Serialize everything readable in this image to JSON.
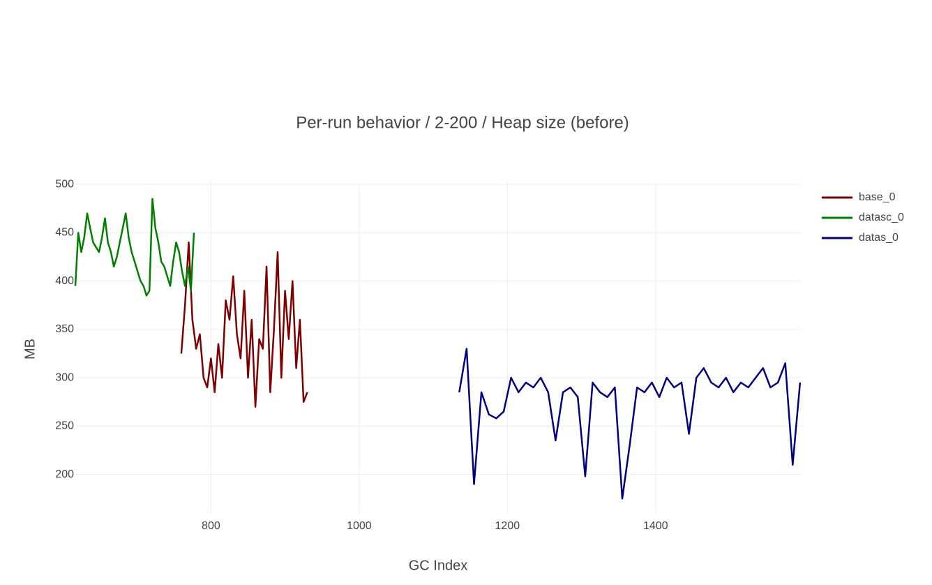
{
  "chart_data": {
    "type": "line",
    "title": "Per-run behavior / 2-200 / Heap size (before)",
    "x_label": "GC Index",
    "y_label": "MB",
    "xlim": [
      617,
      1596
    ],
    "ylim": [
      160,
      503
    ],
    "xticks": [
      800,
      1000,
      1200,
      1400
    ],
    "yticks": [
      200,
      250,
      300,
      350,
      400,
      450,
      500
    ],
    "grid": true,
    "legend": "top-right",
    "series": [
      {
        "name": "base_0",
        "color": "#7f0000",
        "x": [
          760,
          765,
          770,
          775,
          780,
          785,
          790,
          795,
          800,
          805,
          810,
          815,
          820,
          825,
          830,
          835,
          840,
          845,
          850,
          855,
          860,
          865,
          870,
          875,
          880,
          885,
          890,
          895,
          900,
          905,
          910,
          915,
          920,
          925,
          930
        ],
        "values": [
          325,
          375,
          440,
          360,
          330,
          345,
          300,
          290,
          320,
          285,
          335,
          300,
          380,
          360,
          405,
          345,
          320,
          390,
          300,
          360,
          270,
          340,
          330,
          415,
          285,
          350,
          430,
          300,
          390,
          340,
          400,
          310,
          360,
          275,
          285
        ]
      },
      {
        "name": "datasc_0",
        "color": "#008000",
        "x": [
          617,
          621,
          625,
          629,
          633,
          637,
          641,
          645,
          649,
          653,
          657,
          661,
          665,
          669,
          673,
          677,
          681,
          685,
          689,
          693,
          697,
          701,
          705,
          709,
          713,
          717,
          721,
          725,
          729,
          733,
          737,
          741,
          745,
          749,
          753,
          757,
          761,
          765,
          769,
          773,
          777
        ],
        "values": [
          395,
          450,
          430,
          445,
          470,
          455,
          440,
          435,
          430,
          445,
          465,
          440,
          430,
          415,
          425,
          440,
          455,
          470,
          445,
          430,
          420,
          410,
          400,
          395,
          385,
          390,
          485,
          455,
          440,
          420,
          415,
          405,
          395,
          420,
          440,
          430,
          410,
          395,
          415,
          390,
          450
        ]
      },
      {
        "name": "datas_0",
        "color": "#000080",
        "x": [
          1135,
          1145,
          1155,
          1165,
          1175,
          1185,
          1195,
          1205,
          1215,
          1225,
          1235,
          1245,
          1255,
          1265,
          1275,
          1285,
          1295,
          1305,
          1315,
          1325,
          1335,
          1345,
          1355,
          1365,
          1375,
          1385,
          1395,
          1405,
          1415,
          1425,
          1435,
          1445,
          1455,
          1465,
          1475,
          1485,
          1495,
          1505,
          1515,
          1525,
          1535,
          1545,
          1555,
          1565,
          1575,
          1585,
          1595
        ],
        "values": [
          285,
          330,
          190,
          285,
          262,
          258,
          265,
          300,
          285,
          295,
          290,
          300,
          285,
          235,
          285,
          290,
          280,
          198,
          295,
          285,
          280,
          290,
          175,
          230,
          290,
          285,
          295,
          280,
          300,
          290,
          295,
          242,
          300,
          310,
          295,
          290,
          300,
          285,
          295,
          290,
          300,
          310,
          290,
          295,
          315,
          210,
          295
        ]
      }
    ]
  }
}
